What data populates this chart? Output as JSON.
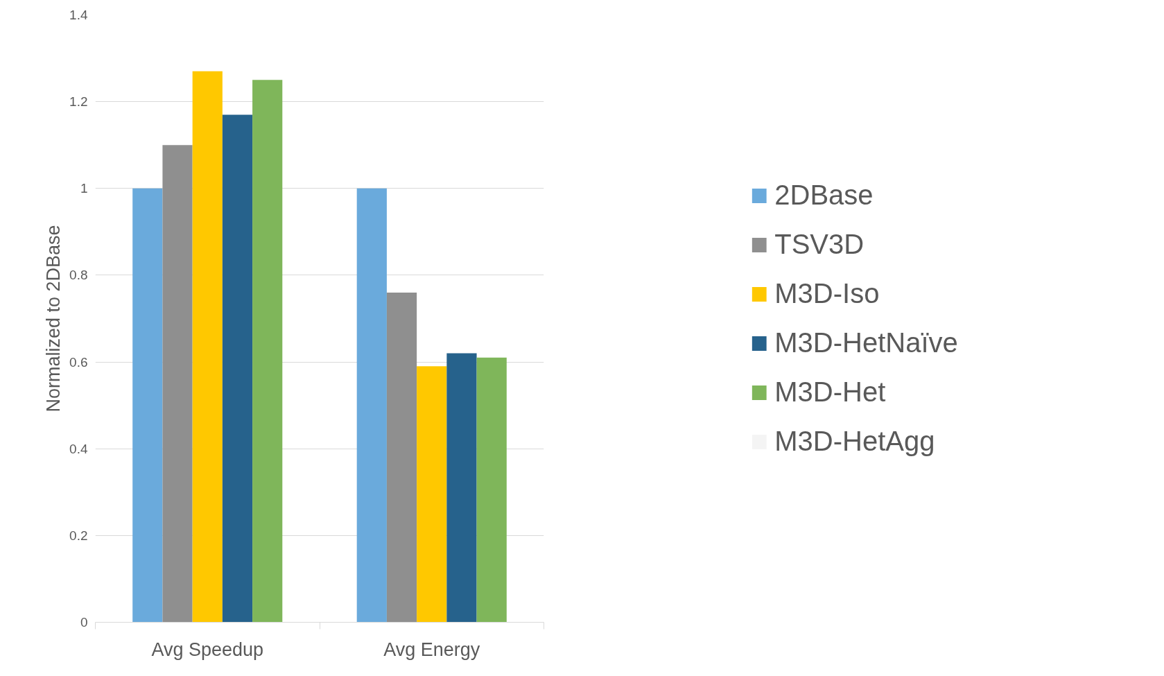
{
  "chart_data": {
    "type": "bar",
    "ylabel": "Normalized to 2DBase",
    "categories": [
      "Avg Speedup",
      "Avg Energy"
    ],
    "series": [
      {
        "name": "2DBase",
        "color": "#6aaadc",
        "values": [
          1,
          1
        ]
      },
      {
        "name": "TSV3D",
        "color": "#8f8f8f",
        "values": [
          1.1,
          0.76
        ]
      },
      {
        "name": "M3D-Iso",
        "color": "#ffc800",
        "values": [
          1.27,
          0.59
        ]
      },
      {
        "name": "M3D-HetNaïve",
        "color": "#26628c",
        "values": [
          1.17,
          0.62
        ]
      },
      {
        "name": "M3D-Het",
        "color": "#7fb65a",
        "values": [
          1.25,
          0.61
        ]
      },
      {
        "name": "M3D-HetAgg",
        "color": "#f4f4f4",
        "values": [
          null,
          null
        ]
      }
    ],
    "ylim": [
      0,
      1.4
    ],
    "yticks": [
      0,
      0.2,
      0.4,
      0.6,
      0.8,
      1,
      {
        "value": 1.2,
        "label": "1.2"
      },
      1.4
    ],
    "grid": "y",
    "legend": "right"
  }
}
